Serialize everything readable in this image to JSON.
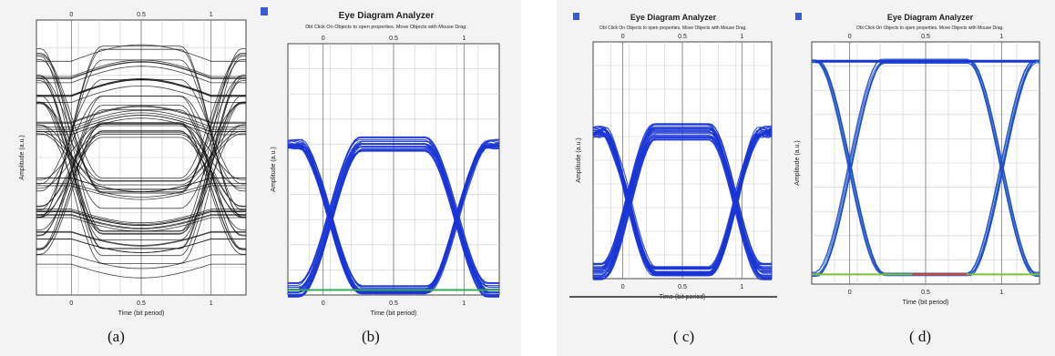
{
  "captions": {
    "a": "(a)",
    "b": "(b)",
    "c": "( c)",
    "d": "( d)"
  },
  "window": {
    "title": "Eye Diagram Analyzer",
    "hint": "Dbl Click On Objects to open properties. Move Objects with Mouse Drag."
  },
  "chart_data": [
    {
      "type": "line",
      "panel": "a",
      "description_axes": true,
      "xlabel": "Time (bit period)",
      "ylabel": "Amplitude (a.u.)",
      "x_ticks": [
        "0",
        "0.5",
        "1"
      ],
      "top_ticks": [
        "0",
        "0.5",
        "1"
      ],
      "xlim": [
        -0.25,
        1.25
      ],
      "style": {
        "trace_color": "#111111",
        "background": "#ffffff",
        "grid": true
      }
    },
    {
      "type": "line",
      "panel": "b",
      "xlabel": "Time (bit period)",
      "ylabel": "Amplitude (a.u.)",
      "x_ticks": [
        "0",
        "0.5",
        "1"
      ],
      "top_ticks": [
        "0",
        "0.5",
        "1"
      ],
      "xlim": [
        -0.25,
        1.25
      ],
      "style": {
        "trace_color": "#1a35d6",
        "background": "#ffffff",
        "grid": true
      }
    },
    {
      "type": "line",
      "panel": "c",
      "xlabel": "Time (bit period)",
      "ylabel": "Amplitude (a.u.)",
      "x_ticks": [
        "0",
        "0.5",
        "1"
      ],
      "top_ticks": [
        "0",
        "0.5",
        "1"
      ],
      "xlim": [
        -0.25,
        1.25
      ],
      "style": {
        "trace_color": "#1a35d6",
        "background": "#ffffff",
        "grid": true
      }
    },
    {
      "type": "line",
      "panel": "d",
      "xlabel": "Time (bit period)",
      "ylabel": "Amplitude (a.u.)",
      "x_ticks": [
        "0",
        "0.5",
        "1"
      ],
      "top_ticks": [
        "0",
        "0.5",
        "1"
      ],
      "xlim": [
        -0.25,
        1.25
      ],
      "style": {
        "trace_color": "#1a35d6",
        "background": "#ffffff",
        "grid": true
      }
    }
  ]
}
